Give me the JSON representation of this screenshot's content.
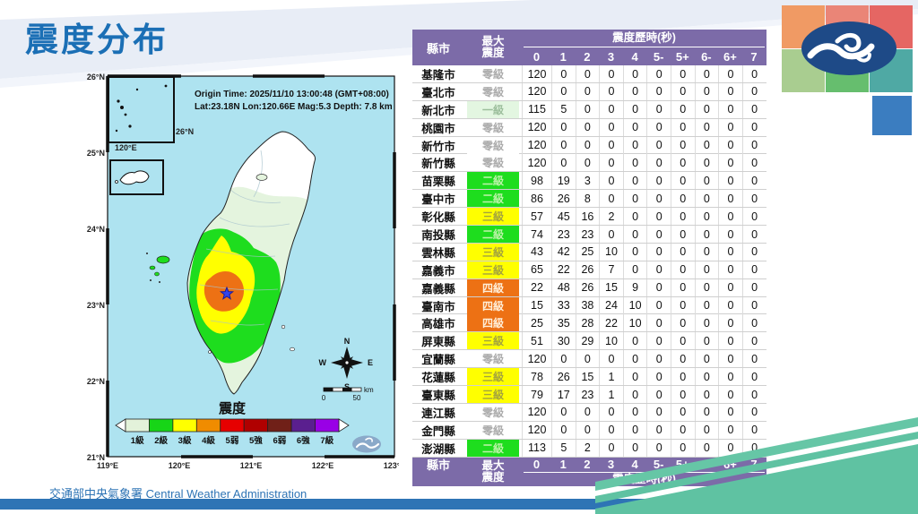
{
  "page": {
    "title": "震度分布",
    "footer": "交通部中央氣象署 Central Weather Administration"
  },
  "colors": {
    "accent_blue": "#1B6FB5",
    "bar_blue": "#2E74B5",
    "header_purple": "#7C6BA8",
    "ribbon_green": "#5FC2A2",
    "sea_blue": "#AEE3F0",
    "zone_level1": "#E4F4DE",
    "zone_level2": "#1EDD1E",
    "zone_level3": "#FFFF00",
    "zone_level4": "#ED7114"
  },
  "map": {
    "info_line1": "Origin Time: 2025/11/10  13:00:48  (GMT+08:00)",
    "info_line2": "Lat:23.18N  Lon:120.66E  Mag:5.3  Depth:  7.8  km",
    "lat_labels": [
      "26°N",
      "25°N",
      "24°N",
      "23°N",
      "22°N",
      "21°N"
    ],
    "lon_labels": [
      "119°E",
      "120°E",
      "121°E",
      "122°E",
      "123°E"
    ],
    "inset_lat_label": "26°N",
    "inset_lon_label": "120°E",
    "compass": {
      "n": "N",
      "e": "E",
      "s": "S",
      "w": "W"
    },
    "scale": {
      "start": "0",
      "end": "50",
      "unit": "km"
    },
    "legend": {
      "title": "震度",
      "items": [
        {
          "label": "1級",
          "color": "#E3F2DA"
        },
        {
          "label": "2級",
          "color": "#17D517"
        },
        {
          "label": "3級",
          "color": "#FFFF00"
        },
        {
          "label": "4級",
          "color": "#F08C00"
        },
        {
          "label": "5弱",
          "color": "#E60000"
        },
        {
          "label": "5強",
          "color": "#B00000"
        },
        {
          "label": "6弱",
          "color": "#702018"
        },
        {
          "label": "6強",
          "color": "#5A1F8F"
        },
        {
          "label": "7級",
          "color": "#9900E6"
        }
      ]
    }
  },
  "table": {
    "county_header": "縣市",
    "max_line1": "最大",
    "max_line2": "震度",
    "duration_header": "震度歷時(秒)",
    "duration_cols": [
      "0",
      "1",
      "2",
      "3",
      "4",
      "5-",
      "5+",
      "6-",
      "6+",
      "7"
    ],
    "levels": {
      "0": {
        "label": "零級",
        "bg": "#FFFFFF",
        "fg": "#ABABAB"
      },
      "1": {
        "label": "一級",
        "bg": "#E3F6E1",
        "fg": "#9CBE9C"
      },
      "2": {
        "label": "二級",
        "bg": "#1EDD1E",
        "fg": "#BDF3A9"
      },
      "3": {
        "label": "三級",
        "bg": "#FFFF00",
        "fg": "#A3A33E"
      },
      "4": {
        "label": "四級",
        "bg": "#ED7114",
        "fg": "#FFEFD9"
      }
    },
    "rows": [
      {
        "county": "基隆市",
        "level": "0",
        "values": [
          120,
          0,
          0,
          0,
          0,
          0,
          0,
          0,
          0,
          0
        ]
      },
      {
        "county": "臺北市",
        "level": "0",
        "values": [
          120,
          0,
          0,
          0,
          0,
          0,
          0,
          0,
          0,
          0
        ]
      },
      {
        "county": "新北市",
        "level": "1",
        "values": [
          115,
          5,
          0,
          0,
          0,
          0,
          0,
          0,
          0,
          0
        ]
      },
      {
        "county": "桃園市",
        "level": "0",
        "values": [
          120,
          0,
          0,
          0,
          0,
          0,
          0,
          0,
          0,
          0
        ]
      },
      {
        "county": "新竹市",
        "level": "0",
        "values": [
          120,
          0,
          0,
          0,
          0,
          0,
          0,
          0,
          0,
          0
        ]
      },
      {
        "county": "新竹縣",
        "level": "0",
        "values": [
          120,
          0,
          0,
          0,
          0,
          0,
          0,
          0,
          0,
          0
        ]
      },
      {
        "county": "苗栗縣",
        "level": "2",
        "values": [
          98,
          19,
          3,
          0,
          0,
          0,
          0,
          0,
          0,
          0
        ]
      },
      {
        "county": "臺中市",
        "level": "2",
        "values": [
          86,
          26,
          8,
          0,
          0,
          0,
          0,
          0,
          0,
          0
        ]
      },
      {
        "county": "彰化縣",
        "level": "3",
        "values": [
          57,
          45,
          16,
          2,
          0,
          0,
          0,
          0,
          0,
          0
        ]
      },
      {
        "county": "南投縣",
        "level": "2",
        "values": [
          74,
          23,
          23,
          0,
          0,
          0,
          0,
          0,
          0,
          0
        ]
      },
      {
        "county": "雲林縣",
        "level": "3",
        "values": [
          43,
          42,
          25,
          10,
          0,
          0,
          0,
          0,
          0,
          0
        ]
      },
      {
        "county": "嘉義市",
        "level": "3",
        "values": [
          65,
          22,
          26,
          7,
          0,
          0,
          0,
          0,
          0,
          0
        ]
      },
      {
        "county": "嘉義縣",
        "level": "4",
        "values": [
          22,
          48,
          26,
          15,
          9,
          0,
          0,
          0,
          0,
          0
        ]
      },
      {
        "county": "臺南市",
        "level": "4",
        "values": [
          15,
          33,
          38,
          24,
          10,
          0,
          0,
          0,
          0,
          0
        ]
      },
      {
        "county": "高雄市",
        "level": "4",
        "values": [
          25,
          35,
          28,
          22,
          10,
          0,
          0,
          0,
          0,
          0
        ]
      },
      {
        "county": "屏東縣",
        "level": "3",
        "values": [
          51,
          30,
          29,
          10,
          0,
          0,
          0,
          0,
          0,
          0
        ]
      },
      {
        "county": "宜蘭縣",
        "level": "0",
        "values": [
          120,
          0,
          0,
          0,
          0,
          0,
          0,
          0,
          0,
          0
        ]
      },
      {
        "county": "花蓮縣",
        "level": "3",
        "values": [
          78,
          26,
          15,
          1,
          0,
          0,
          0,
          0,
          0,
          0
        ]
      },
      {
        "county": "臺東縣",
        "level": "3",
        "values": [
          79,
          17,
          23,
          1,
          0,
          0,
          0,
          0,
          0,
          0
        ]
      },
      {
        "county": "連江縣",
        "level": "0",
        "values": [
          120,
          0,
          0,
          0,
          0,
          0,
          0,
          0,
          0,
          0
        ]
      },
      {
        "county": "金門縣",
        "level": "0",
        "values": [
          120,
          0,
          0,
          0,
          0,
          0,
          0,
          0,
          0,
          0
        ]
      },
      {
        "county": "澎湖縣",
        "level": "2",
        "values": [
          113,
          5,
          2,
          0,
          0,
          0,
          0,
          0,
          0,
          0
        ]
      }
    ]
  }
}
